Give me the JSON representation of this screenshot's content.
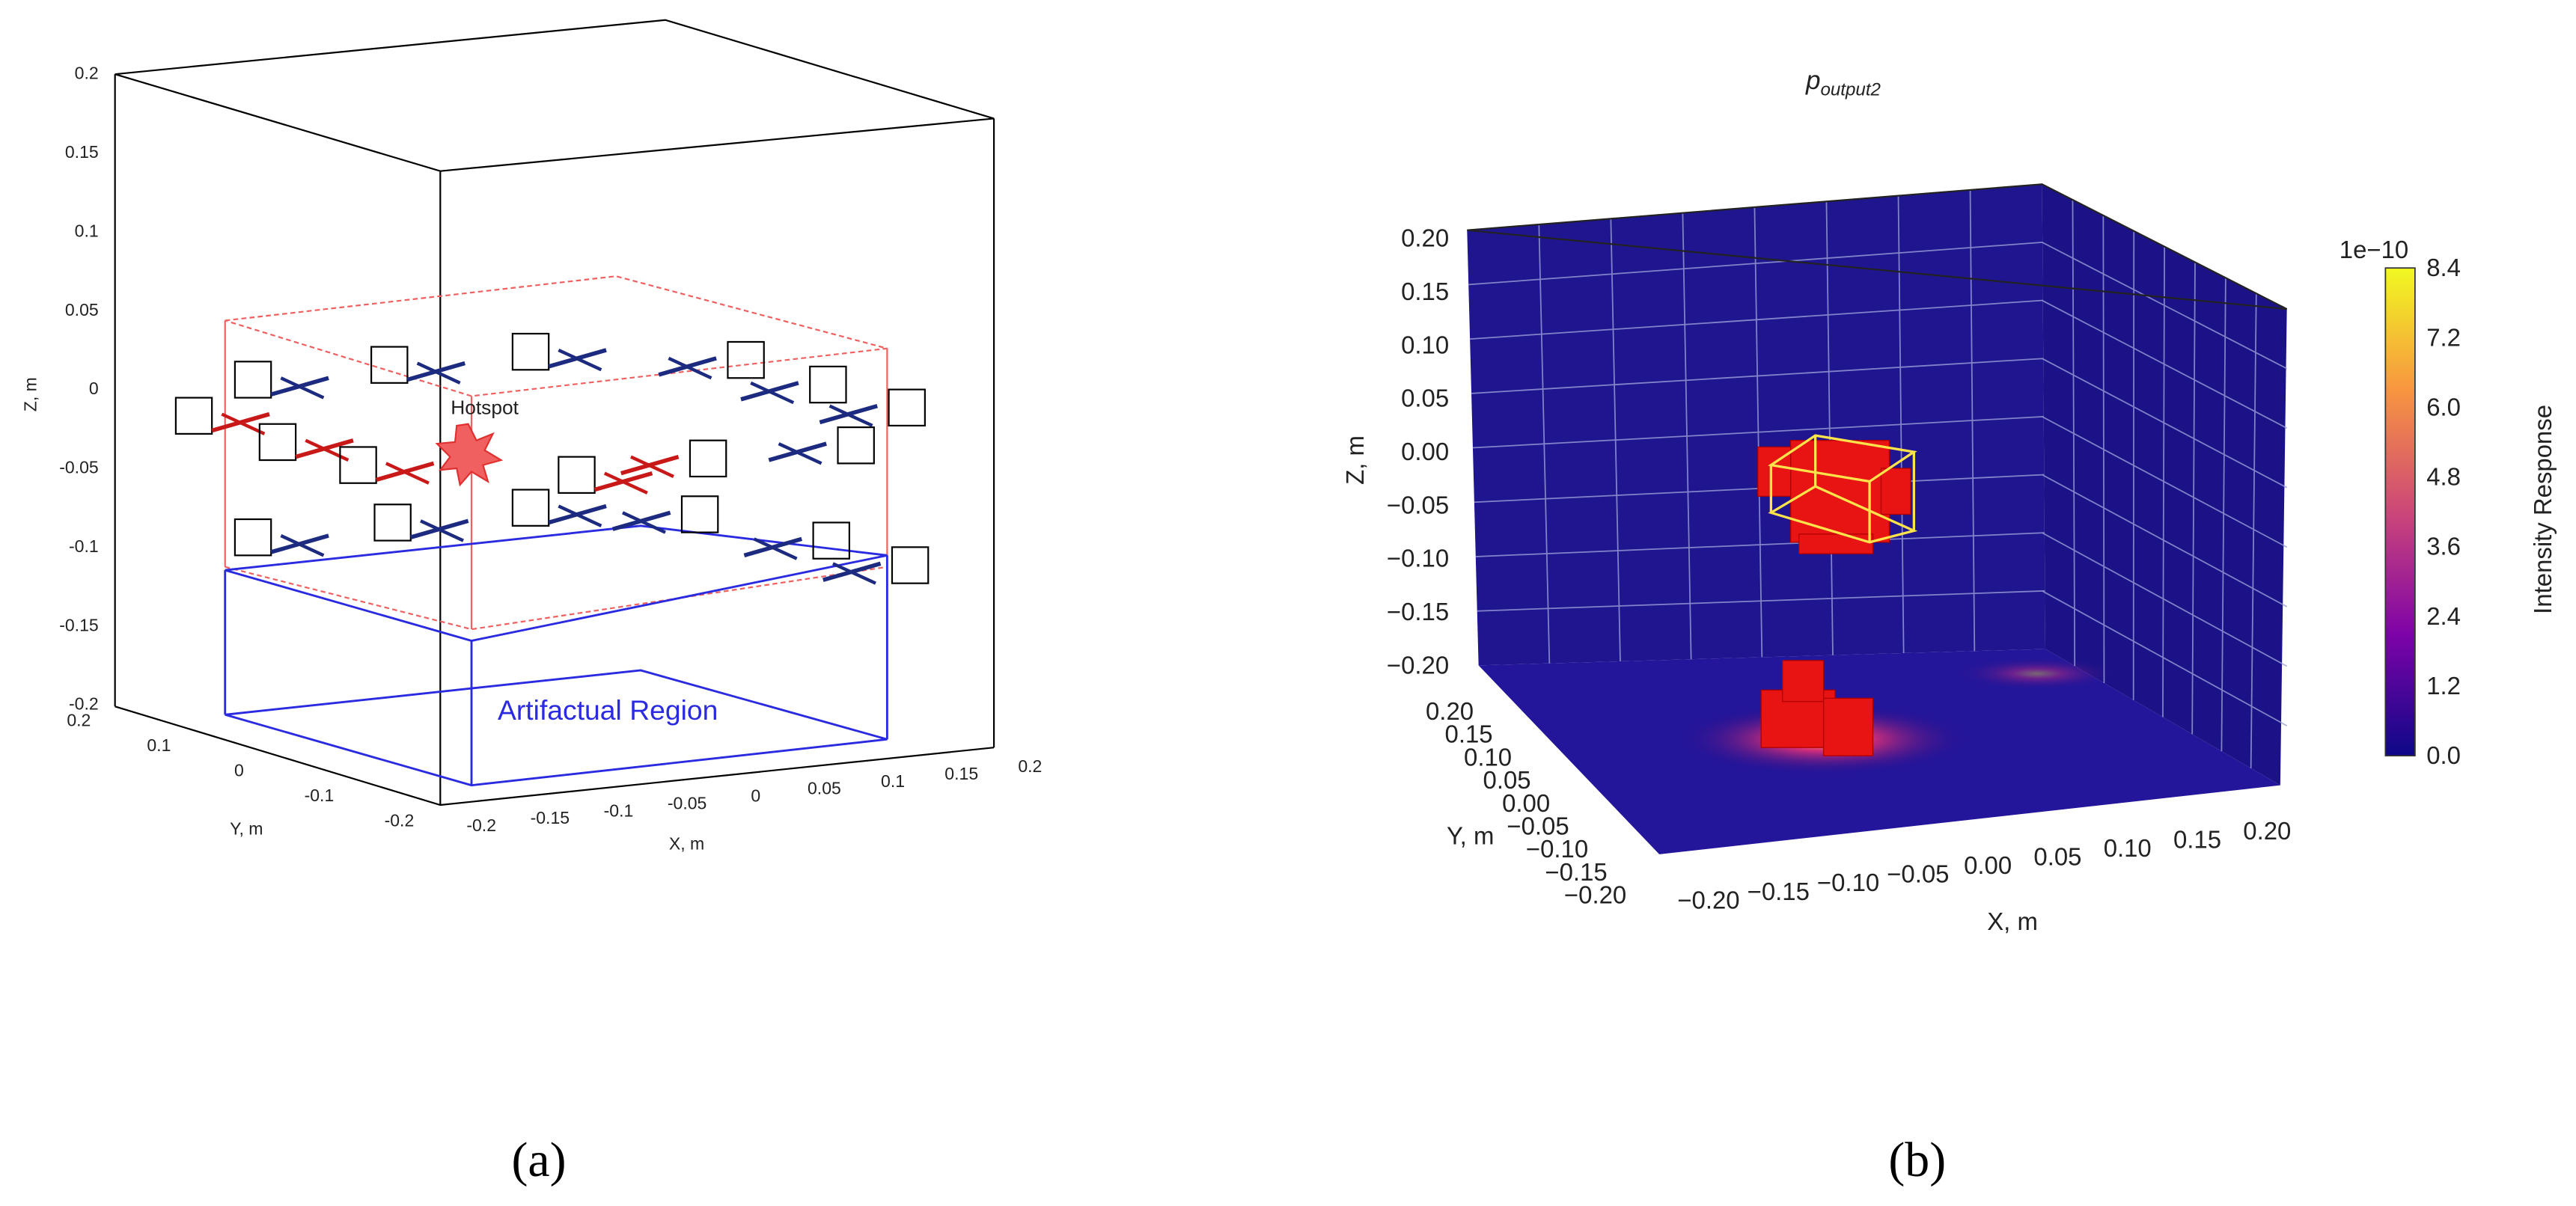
{
  "panel_a": {
    "label": "(a)",
    "z_axis": {
      "label": "Z, m",
      "ticks": [
        "0.2",
        "0.15",
        "0.1",
        "0.05",
        "0",
        "-0.05",
        "-0.1",
        "-0.15",
        "-0.2"
      ]
    },
    "y_axis": {
      "label": "Y, m",
      "ticks": [
        "0.2",
        "0.1",
        "0",
        "-0.1",
        "-0.2"
      ]
    },
    "x_axis": {
      "label": "X, m",
      "ticks": [
        "-0.2",
        "-0.15",
        "-0.1",
        "-0.05",
        "0",
        "0.05",
        "0.1",
        "0.15",
        "0.2"
      ]
    },
    "annotations": [
      "Hotspot",
      "Artifactual Region"
    ]
  },
  "panel_b": {
    "label": "(b)",
    "title": {
      "base": "p",
      "subscript": "output2"
    },
    "z_axis": {
      "label": "Z, m",
      "ticks": [
        "0.20",
        "0.15",
        "0.10",
        "0.05",
        "0.00",
        "−0.05",
        "−0.10",
        "−0.15",
        "−0.20"
      ]
    },
    "y_axis": {
      "label": "Y, m",
      "ticks": [
        "0.20",
        "0.15",
        "0.10",
        "0.05",
        "0.00",
        "−0.05",
        "−0.10",
        "−0.15",
        "−0.20"
      ]
    },
    "x_axis": {
      "label": "X, m",
      "ticks": [
        "−0.20",
        "−0.15",
        "−0.10",
        "−0.05",
        "0.00",
        "0.05",
        "0.10",
        "0.15",
        "0.20"
      ]
    },
    "colorbar": {
      "label": "Intensity Response",
      "multiplier": "1e−10",
      "ticks": [
        "8.4",
        "7.2",
        "6.0",
        "4.8",
        "3.6",
        "2.4",
        "1.2",
        "0.0"
      ]
    }
  }
}
